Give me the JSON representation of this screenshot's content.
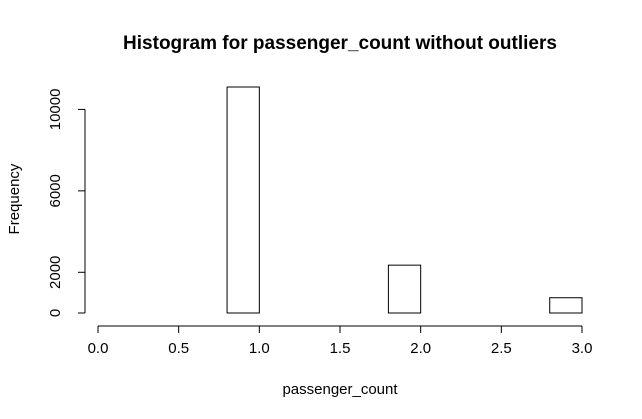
{
  "chart_data": {
    "type": "bar",
    "title": "Histogram for passenger_count without outliers",
    "xlabel": "passenger_count",
    "ylabel": "Frequency",
    "bin_width": 0.2,
    "bins": [
      {
        "start": 0.0,
        "end": 0.2,
        "count": 0
      },
      {
        "start": 0.2,
        "end": 0.4,
        "count": 0
      },
      {
        "start": 0.4,
        "end": 0.6,
        "count": 0
      },
      {
        "start": 0.6,
        "end": 0.8,
        "count": 0
      },
      {
        "start": 0.8,
        "end": 1.0,
        "count": 11100
      },
      {
        "start": 1.0,
        "end": 1.2,
        "count": 0
      },
      {
        "start": 1.2,
        "end": 1.4,
        "count": 0
      },
      {
        "start": 1.4,
        "end": 1.6,
        "count": 0
      },
      {
        "start": 1.6,
        "end": 1.8,
        "count": 0
      },
      {
        "start": 1.8,
        "end": 2.0,
        "count": 2350
      },
      {
        "start": 2.0,
        "end": 2.2,
        "count": 0
      },
      {
        "start": 2.2,
        "end": 2.4,
        "count": 0
      },
      {
        "start": 2.4,
        "end": 2.6,
        "count": 0
      },
      {
        "start": 2.6,
        "end": 2.8,
        "count": 0
      },
      {
        "start": 2.8,
        "end": 3.0,
        "count": 750
      }
    ],
    "xlim": [
      0,
      3.0
    ],
    "ylim": [
      0,
      11100
    ],
    "x_ticks": [
      "0.0",
      "0.5",
      "1.0",
      "1.5",
      "2.0",
      "2.5",
      "3.0"
    ],
    "y_ticks": [
      "0",
      "2000",
      "6000",
      "10000"
    ],
    "grid": false
  }
}
